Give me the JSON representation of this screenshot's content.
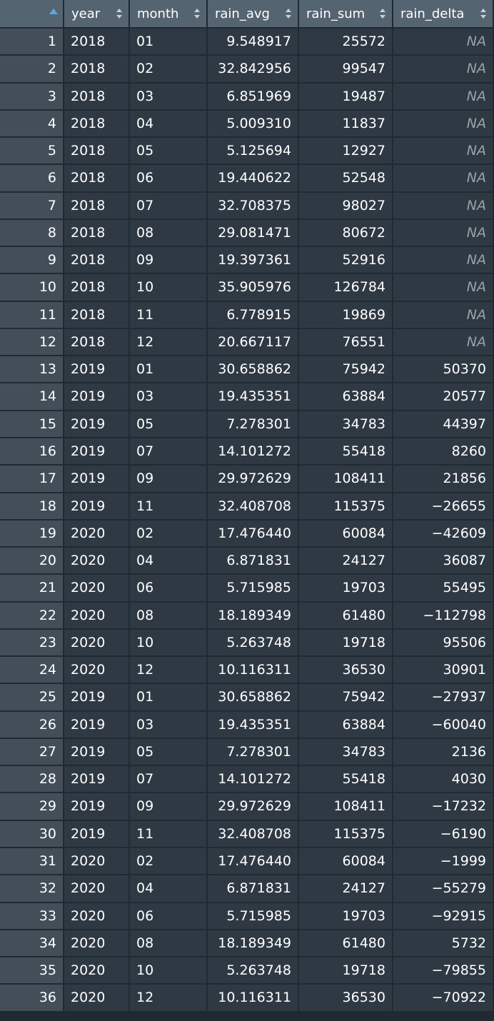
{
  "columns": [
    {
      "key": "rowname",
      "label": ""
    },
    {
      "key": "year",
      "label": "year"
    },
    {
      "key": "month",
      "label": "month"
    },
    {
      "key": "rain_avg",
      "label": "rain_avg"
    },
    {
      "key": "rain_sum",
      "label": "rain_sum"
    },
    {
      "key": "rain_delta",
      "label": "rain_delta"
    }
  ],
  "sort_icon": "sort-updown-icon",
  "active_sort_icon": "sort-asc-icon",
  "colors": {
    "background": "#1f2a33",
    "header_bg": "#556471",
    "index_bg": "#434e58",
    "cell_bg": "#2f3943",
    "text": "#ffffff",
    "na_text": "#9aa3ab"
  },
  "rows": [
    [
      "1",
      "2018",
      "01",
      "9.548917",
      "25572",
      "NA"
    ],
    [
      "2",
      "2018",
      "02",
      "32.842956",
      "99547",
      "NA"
    ],
    [
      "3",
      "2018",
      "03",
      "6.851969",
      "19487",
      "NA"
    ],
    [
      "4",
      "2018",
      "04",
      "5.009310",
      "11837",
      "NA"
    ],
    [
      "5",
      "2018",
      "05",
      "5.125694",
      "12927",
      "NA"
    ],
    [
      "6",
      "2018",
      "06",
      "19.440622",
      "52548",
      "NA"
    ],
    [
      "7",
      "2018",
      "07",
      "32.708375",
      "98027",
      "NA"
    ],
    [
      "8",
      "2018",
      "08",
      "29.081471",
      "80672",
      "NA"
    ],
    [
      "9",
      "2018",
      "09",
      "19.397361",
      "52916",
      "NA"
    ],
    [
      "10",
      "2018",
      "10",
      "35.905976",
      "126784",
      "NA"
    ],
    [
      "11",
      "2018",
      "11",
      "6.778915",
      "19869",
      "NA"
    ],
    [
      "12",
      "2018",
      "12",
      "20.667117",
      "76551",
      "NA"
    ],
    [
      "13",
      "2019",
      "01",
      "30.658862",
      "75942",
      "50370"
    ],
    [
      "14",
      "2019",
      "03",
      "19.435351",
      "63884",
      "20577"
    ],
    [
      "15",
      "2019",
      "05",
      "7.278301",
      "34783",
      "44397"
    ],
    [
      "16",
      "2019",
      "07",
      "14.101272",
      "55418",
      "8260"
    ],
    [
      "17",
      "2019",
      "09",
      "29.972629",
      "108411",
      "21856"
    ],
    [
      "18",
      "2019",
      "11",
      "32.408708",
      "115375",
      "-26655"
    ],
    [
      "19",
      "2020",
      "02",
      "17.476440",
      "60084",
      "-42609"
    ],
    [
      "20",
      "2020",
      "04",
      "6.871831",
      "24127",
      "36087"
    ],
    [
      "21",
      "2020",
      "06",
      "5.715985",
      "19703",
      "55495"
    ],
    [
      "22",
      "2020",
      "08",
      "18.189349",
      "61480",
      "-112798"
    ],
    [
      "23",
      "2020",
      "10",
      "5.263748",
      "19718",
      "95506"
    ],
    [
      "24",
      "2020",
      "12",
      "10.116311",
      "36530",
      "30901"
    ],
    [
      "25",
      "2019",
      "01",
      "30.658862",
      "75942",
      "-27937"
    ],
    [
      "26",
      "2019",
      "03",
      "19.435351",
      "63884",
      "-60040"
    ],
    [
      "27",
      "2019",
      "05",
      "7.278301",
      "34783",
      "2136"
    ],
    [
      "28",
      "2019",
      "07",
      "14.101272",
      "55418",
      "4030"
    ],
    [
      "29",
      "2019",
      "09",
      "29.972629",
      "108411",
      "-17232"
    ],
    [
      "30",
      "2019",
      "11",
      "32.408708",
      "115375",
      "-6190"
    ],
    [
      "31",
      "2020",
      "02",
      "17.476440",
      "60084",
      "-1999"
    ],
    [
      "32",
      "2020",
      "04",
      "6.871831",
      "24127",
      "-55279"
    ],
    [
      "33",
      "2020",
      "06",
      "5.715985",
      "19703",
      "-92915"
    ],
    [
      "34",
      "2020",
      "08",
      "18.189349",
      "61480",
      "5732"
    ],
    [
      "35",
      "2020",
      "10",
      "5.263748",
      "19718",
      "-79855"
    ],
    [
      "36",
      "2020",
      "12",
      "10.116311",
      "36530",
      "-70922"
    ]
  ]
}
